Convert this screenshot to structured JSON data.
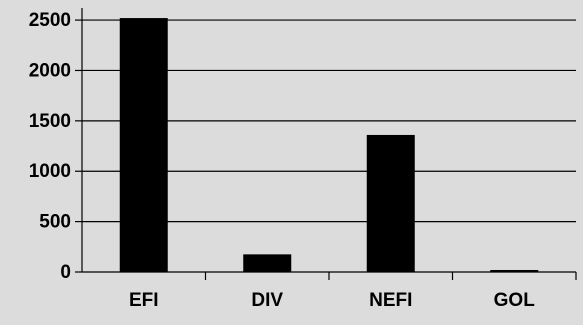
{
  "chart_data": {
    "type": "bar",
    "categories": [
      "EFI",
      "DIV",
      "NEFI",
      "GOL"
    ],
    "values": [
      2520,
      175,
      1360,
      20
    ],
    "yticks": [
      "0",
      "500",
      "1000",
      "1500",
      "2000",
      "2500"
    ],
    "ylim": [
      0,
      2600
    ],
    "title": "",
    "xlabel": "",
    "ylabel": "",
    "grid": true,
    "legend": "none",
    "colors": {
      "background": "#dcdcdc",
      "bar": "#000000",
      "grid": "#000000",
      "text": "#000000"
    }
  }
}
